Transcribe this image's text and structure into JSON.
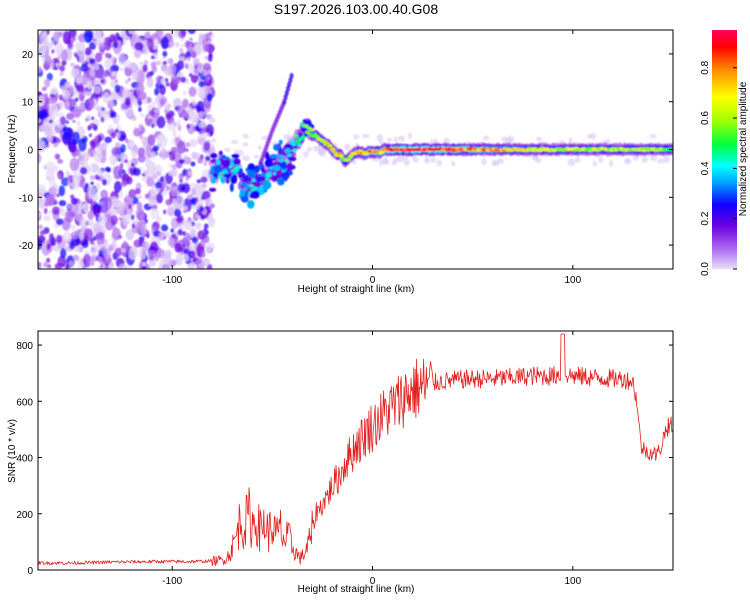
{
  "title": "S197.2026.103.00.40.G08",
  "colors": {
    "snr_line": "#e32020",
    "spectrogram_noise": "#8a3ff0",
    "colorbar_stops": [
      "#d8c8f4",
      "#b070f0",
      "#6a00e0",
      "#0000ff",
      "#00a0ff",
      "#00ffff",
      "#00ff40",
      "#a0ff00",
      "#ffff00",
      "#ff9000",
      "#ff0000",
      "#ff0060"
    ]
  },
  "chart_data": [
    {
      "type": "heatmap",
      "name": "spectrogram",
      "title": "S197.2026.103.00.40.G08",
      "xlabel": "Height of straight line (km)",
      "ylabel": "Frequency (Hz)",
      "xlim": [
        -167,
        150
      ],
      "ylim": [
        -25,
        25
      ],
      "xticks": [
        -100,
        0,
        100
      ],
      "yticks": [
        -20,
        -10,
        0,
        10,
        20
      ],
      "xtick_labels": [
        "-100",
        "0",
        "100"
      ],
      "ytick_labels": [
        "-20",
        "-10",
        "0",
        "10",
        "20"
      ],
      "noise_region_x": [
        -167,
        -80
      ],
      "ridge": {
        "x": [
          -80,
          -76,
          -72,
          -68,
          -64,
          -60,
          -56,
          -52,
          -48,
          -44,
          -40,
          -36,
          -34,
          -32,
          -30,
          -28,
          -26,
          -24,
          -22,
          -20,
          -18,
          -16,
          -14,
          -12,
          -10,
          -8,
          -6,
          -4,
          -2,
          0,
          2,
          4,
          6,
          8,
          10,
          20,
          40,
          60,
          80,
          100,
          120,
          140,
          150
        ],
        "y": [
          -5,
          -4,
          -5,
          -4,
          -8,
          -8,
          -7,
          -5,
          -4,
          -2,
          0,
          3,
          4.5,
          4,
          3,
          3,
          2,
          1.5,
          1,
          0,
          -1,
          -1,
          -2.5,
          -2,
          -1,
          -0.5,
          -0.5,
          -1,
          -0.5,
          -0.5,
          -0.5,
          -0.5,
          0,
          0,
          0,
          0,
          0,
          0,
          0,
          0,
          0,
          0,
          0
        ],
        "amplitude": [
          0.3,
          0.4,
          0.35,
          0.45,
          0.35,
          0.4,
          0.35,
          0.4,
          0.35,
          0.4,
          0.4,
          0.45,
          0.5,
          0.55,
          0.6,
          0.55,
          0.6,
          0.65,
          0.7,
          0.75,
          0.6,
          0.7,
          0.5,
          0.6,
          0.65,
          0.7,
          0.75,
          0.7,
          0.8,
          0.85,
          0.85,
          0.8,
          0.85,
          0.9,
          0.9,
          0.9,
          0.88,
          0.75,
          0.65,
          0.6,
          0.62,
          0.6,
          0.55
        ]
      },
      "spur": {
        "x": [
          -56,
          -50,
          -44,
          -40
        ],
        "y": [
          -3,
          4,
          10,
          16
        ]
      },
      "colorbar": {
        "label": "Normalized spectral amplitude",
        "range": [
          0,
          0.95
        ],
        "ticks": [
          0,
          0.2,
          0.4,
          0.6,
          0.8
        ],
        "tick_labels": [
          "0.0",
          "0.2",
          "0.4",
          "0.6",
          "0.8"
        ]
      }
    },
    {
      "type": "line",
      "name": "snr",
      "xlabel": "Height of straight line (km)",
      "ylabel": "SNR (10 * v/v)",
      "xlim": [
        -167,
        150
      ],
      "ylim": [
        0,
        850
      ],
      "xticks": [
        -100,
        0,
        100
      ],
      "yticks": [
        0,
        200,
        400,
        600,
        800
      ],
      "xtick_labels": [
        "-100",
        "0",
        "100"
      ],
      "ytick_labels": [
        "0",
        "200",
        "400",
        "600",
        "800"
      ],
      "series": [
        {
          "name": "SNR",
          "x": [
            -167,
            -150,
            -130,
            -110,
            -90,
            -80,
            -75,
            -72,
            -70,
            -68,
            -66,
            -64,
            -62,
            -60,
            -58,
            -56,
            -54,
            -52,
            -50,
            -48,
            -46,
            -44,
            -42,
            -40,
            -38,
            -36,
            -34,
            -32,
            -30,
            -28,
            -26,
            -24,
            -22,
            -20,
            -18,
            -16,
            -14,
            -12,
            -10,
            -8,
            -6,
            -4,
            -2,
            0,
            4,
            8,
            12,
            16,
            20,
            24,
            28,
            30,
            35,
            40,
            50,
            60,
            70,
            80,
            90,
            95,
            100,
            110,
            120,
            125,
            130,
            132,
            134,
            136,
            138,
            140,
            142,
            144,
            146,
            148,
            150
          ],
          "y": [
            25,
            25,
            28,
            30,
            30,
            32,
            35,
            50,
            80,
            120,
            180,
            150,
            200,
            160,
            180,
            140,
            170,
            130,
            160,
            120,
            150,
            100,
            120,
            80,
            60,
            40,
            60,
            90,
            140,
            210,
            220,
            250,
            270,
            300,
            320,
            340,
            380,
            400,
            420,
            450,
            460,
            480,
            500,
            510,
            540,
            570,
            590,
            620,
            640,
            650,
            660,
            665,
            670,
            675,
            680,
            680,
            685,
            690,
            690,
            700,
            690,
            685,
            680,
            680,
            670,
            600,
            440,
            425,
            420,
            415,
            410,
            440,
            490,
            520,
            500
          ]
        }
      ]
    }
  ]
}
